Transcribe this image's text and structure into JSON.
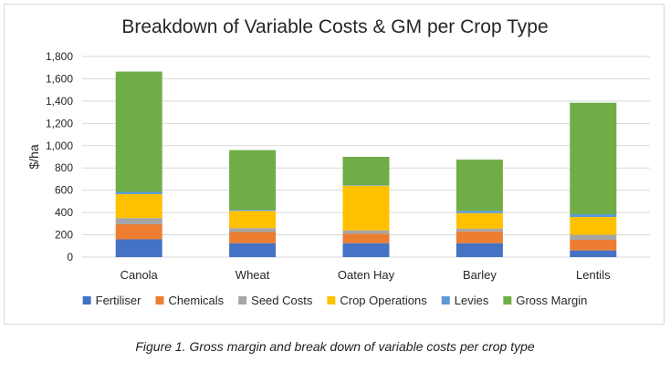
{
  "caption": "Figure 1. Gross margin and break down of variable costs per crop type",
  "chart_data": {
    "type": "bar",
    "stacked": true,
    "title": "Breakdown of Variable Costs & GM per Crop Type",
    "xlabel": "",
    "ylabel": "$/ha",
    "ylim": [
      0,
      1800
    ],
    "yticks": [
      0,
      200,
      400,
      600,
      800,
      1000,
      1200,
      1400,
      1600,
      1800
    ],
    "ytick_labels": [
      "0",
      "200",
      "400",
      "600",
      "800",
      "1,000",
      "1,200",
      "1,400",
      "1,600",
      "1,800"
    ],
    "grid": true,
    "legend_position": "bottom",
    "categories": [
      "Canola",
      "Wheat",
      "Oaten Hay",
      "Barley",
      "Lentils"
    ],
    "series": [
      {
        "name": "Fertiliser",
        "color": "#4472C4",
        "values": [
          160,
          125,
          125,
          125,
          60
        ]
      },
      {
        "name": "Chemicals",
        "color": "#ED7D31",
        "values": [
          135,
          100,
          85,
          105,
          95
        ]
      },
      {
        "name": "Seed Costs",
        "color": "#A5A5A5",
        "values": [
          55,
          35,
          30,
          25,
          45
        ]
      },
      {
        "name": "Crop Operations",
        "color": "#FFC000",
        "values": [
          215,
          155,
          400,
          140,
          160
        ]
      },
      {
        "name": "Levies",
        "color": "#5B9BD5",
        "values": [
          20,
          10,
          5,
          20,
          25
        ]
      },
      {
        "name": "Gross Margin",
        "color": "#70AD47",
        "values": [
          1080,
          535,
          255,
          460,
          1000
        ]
      }
    ]
  }
}
